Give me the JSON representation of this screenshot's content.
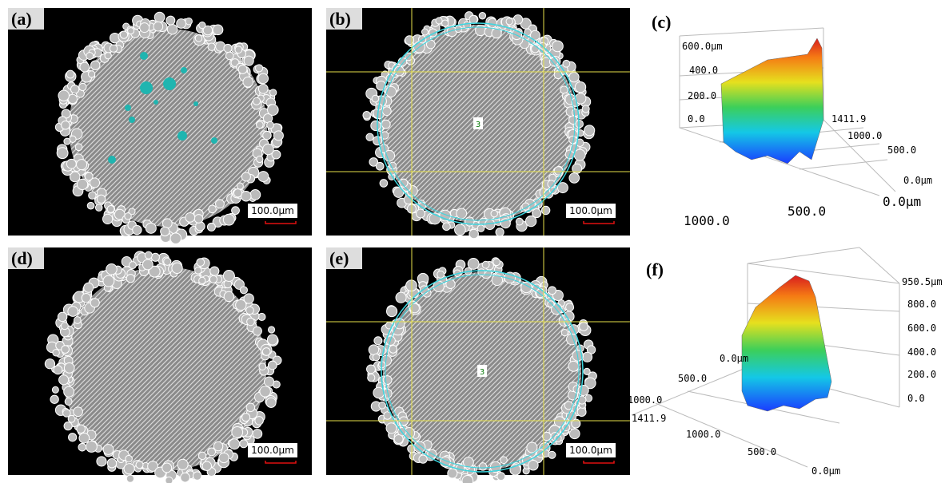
{
  "panels": [
    {
      "label": "(a)",
      "scale_bar": "100.0μm"
    },
    {
      "label": "(b)",
      "scale_bar": "100.0μm",
      "marker": "3"
    },
    {
      "label": "(c)",
      "axis_labels": [
        "600.0μm",
        "400.0",
        "200.0",
        "0.0",
        "1411.9",
        "1000.0",
        "500.0",
        "0.0μm",
        "0.0μm",
        "500.0",
        "1000.0"
      ]
    },
    {
      "label": "(d)",
      "scale_bar": "100.0μm"
    },
    {
      "label": "(e)",
      "scale_bar": "100.0μm",
      "marker": "3"
    },
    {
      "label": "(f)",
      "axis_labels": [
        "950.5μm",
        "800.0",
        "600.0",
        "400.0",
        "200.0",
        "0.0",
        "0.0μm",
        "500.0",
        "1000.0",
        "1411.9",
        "1000.0",
        "500.0",
        "0.0μm"
      ]
    }
  ]
}
